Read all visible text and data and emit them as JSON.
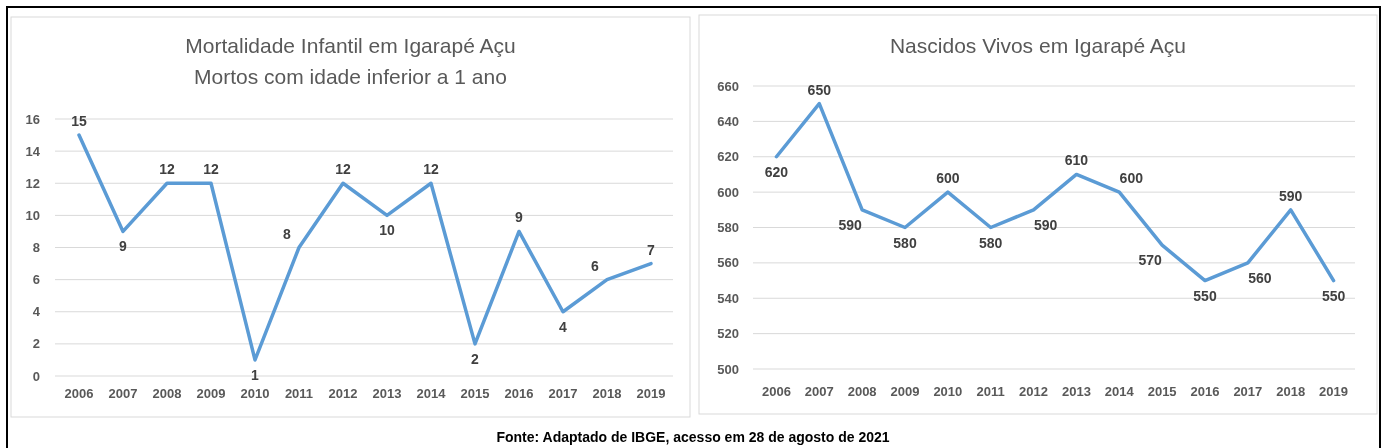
{
  "chart_data": [
    {
      "type": "line",
      "title": "Mortalidade Infantil em Igarapé Açu",
      "subtitle": "Mortos com idade inferior a 1 ano",
      "categories": [
        "2006",
        "2007",
        "2008",
        "2009",
        "2010",
        "2011",
        "2012",
        "2013",
        "2014",
        "2015",
        "2016",
        "2017",
        "2018",
        "2019"
      ],
      "series": [
        {
          "color": "#5b9bd5",
          "values": [
            15,
            9,
            12,
            12,
            1,
            8,
            12,
            10,
            12,
            2,
            9,
            4,
            6,
            7
          ]
        }
      ],
      "ylim": [
        0,
        16
      ],
      "yticks": [
        0,
        2,
        4,
        6,
        8,
        10,
        12,
        14,
        16
      ],
      "grid": "y",
      "data_labels": true
    },
    {
      "type": "line",
      "title": "Nascidos Vivos em Igarapé Açu",
      "categories": [
        "2006",
        "2007",
        "2008",
        "2009",
        "2010",
        "2011",
        "2012",
        "2013",
        "2014",
        "2015",
        "2016",
        "2017",
        "2018",
        "2019"
      ],
      "series": [
        {
          "color": "#5b9bd5",
          "values": [
            620,
            650,
            590,
            580,
            600,
            580,
            590,
            610,
            600,
            570,
            550,
            560,
            590,
            550
          ]
        }
      ],
      "ylim": [
        500,
        660
      ],
      "yticks": [
        500,
        520,
        540,
        560,
        580,
        600,
        620,
        640,
        660
      ],
      "grid": "y",
      "data_labels": true,
      "annotations": [
        "Fonte: Adaptado de IBGE, acesso em 28 de agosto de 2021"
      ]
    }
  ]
}
